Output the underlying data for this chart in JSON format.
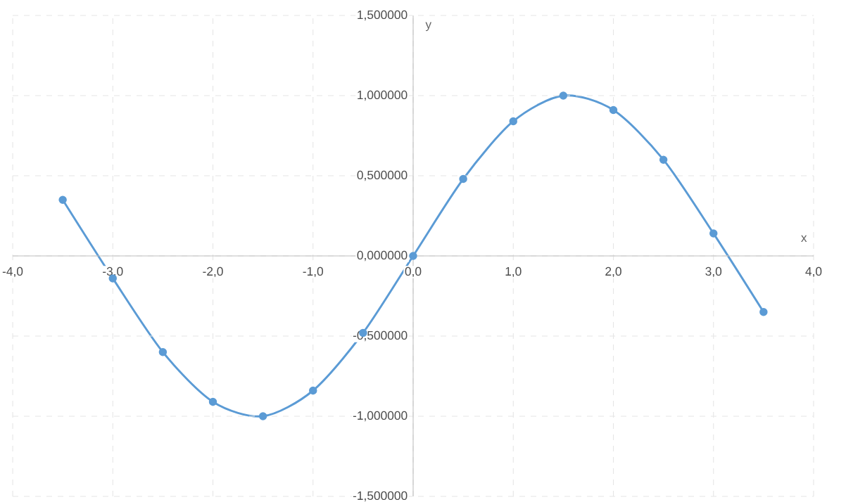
{
  "chart_data": {
    "type": "line",
    "xlabel": "x",
    "ylabel": "y",
    "x": [
      -3.5,
      -3.0,
      -2.5,
      -2.0,
      -1.5,
      -1.0,
      -0.5,
      0.0,
      0.5,
      1.0,
      1.5,
      2.0,
      2.5,
      3.0,
      3.5
    ],
    "series": [
      {
        "color": "#5b9bd5",
        "values": [
          0.35,
          -0.14,
          -0.6,
          -0.91,
          -1.0,
          -0.84,
          -0.48,
          0.0,
          0.48,
          0.84,
          1.0,
          0.91,
          0.6,
          0.14,
          -0.35
        ]
      }
    ],
    "xlim": [
      -4,
      4
    ],
    "ylim": [
      -1.5,
      1.5
    ],
    "xticks": [
      {
        "value": -4,
        "label": "-4,0"
      },
      {
        "value": -3,
        "label": "-3,0"
      },
      {
        "value": -2,
        "label": "-2,0"
      },
      {
        "value": -1,
        "label": "-1,0"
      },
      {
        "value": 0,
        "label": "0,0"
      },
      {
        "value": 1,
        "label": "1,0"
      },
      {
        "value": 2,
        "label": "2,0"
      },
      {
        "value": 3,
        "label": "3,0"
      },
      {
        "value": 4,
        "label": "4,0"
      }
    ],
    "yticks": [
      {
        "value": -1.5,
        "label": "-1,500000"
      },
      {
        "value": -1,
        "label": "-1,000000"
      },
      {
        "value": -0.5,
        "label": "-0,500000"
      },
      {
        "value": 0,
        "label": "0,000000"
      },
      {
        "value": 0.5,
        "label": "0,500000"
      },
      {
        "value": 1,
        "label": "1,000000"
      },
      {
        "value": 1.5,
        "label": "1,500000"
      }
    ],
    "grid": true,
    "marker": "circle",
    "line_style": "solid"
  }
}
